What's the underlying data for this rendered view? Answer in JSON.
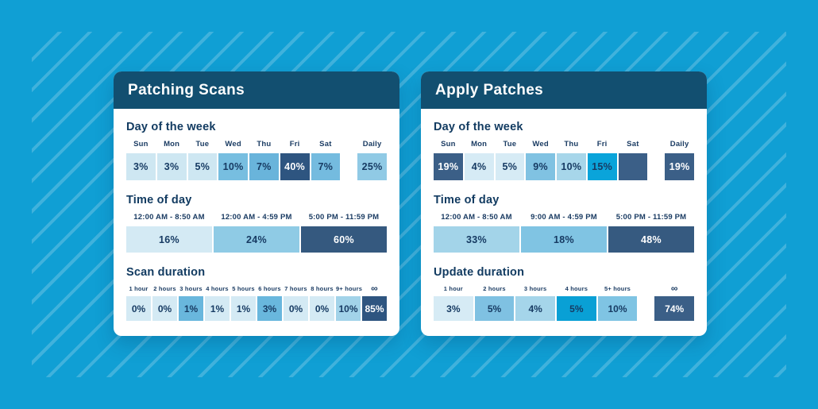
{
  "page": {
    "background_color": "#109FD4",
    "stripe_color": "rgba(255,255,255,0.20)",
    "header_color": "#124F70",
    "card_background": "#FFFFFF",
    "text_color": "#173B63"
  },
  "cards": [
    {
      "title": "Patching Scans",
      "sections": [
        {
          "title": "Day of the week",
          "type": "day",
          "cells": [
            {
              "label": "Sun",
              "value": "3%",
              "bg": "#CEE7F2",
              "text": "dark",
              "gap_before": false
            },
            {
              "label": "Mon",
              "value": "3%",
              "bg": "#CEE7F2",
              "text": "dark",
              "gap_before": false
            },
            {
              "label": "Tue",
              "value": "5%",
              "bg": "#CEE7F2",
              "text": "dark",
              "gap_before": false
            },
            {
              "label": "Wed",
              "value": "10%",
              "bg": "#77BEE0",
              "text": "dark",
              "gap_before": false
            },
            {
              "label": "Thu",
              "value": "7%",
              "bg": "#69B4DB",
              "text": "dark",
              "gap_before": false
            },
            {
              "label": "Fri",
              "value": "40%",
              "bg": "#2E5580",
              "text": "light",
              "gap_before": false
            },
            {
              "label": "Sat",
              "value": "7%",
              "bg": "#74BBDF",
              "text": "dark",
              "gap_before": false
            },
            {
              "label": "Daily",
              "value": "25%",
              "bg": "#90CAE5",
              "text": "dark",
              "gap_before": true
            }
          ]
        },
        {
          "title": "Time of day",
          "type": "time",
          "cells": [
            {
              "label": "12:00 AM - 8:50 AM",
              "value": "16%",
              "bg": "#D4EAF4",
              "text": "dark",
              "gap_before": false
            },
            {
              "label": "12:00 AM - 4:59 PM",
              "value": "24%",
              "bg": "#8FCBE5",
              "text": "dark",
              "gap_before": false
            },
            {
              "label": "5:00 PM - 11:59 PM",
              "value": "60%",
              "bg": "#35597F",
              "text": "light",
              "gap_before": false
            }
          ]
        },
        {
          "title": "Scan duration",
          "type": "duration",
          "cells": [
            {
              "label": "1 hour",
              "value": "0%",
              "bg": "#D4EAF4",
              "text": "dark",
              "gap_before": false
            },
            {
              "label": "2 hours",
              "value": "0%",
              "bg": "#D4EAF4",
              "text": "dark",
              "gap_before": false
            },
            {
              "label": "3 hours",
              "value": "1%",
              "bg": "#69B7DD",
              "text": "dark",
              "gap_before": false
            },
            {
              "label": "4 hours",
              "value": "1%",
              "bg": "#D4EAF4",
              "text": "dark",
              "gap_before": false
            },
            {
              "label": "5 hours",
              "value": "1%",
              "bg": "#D4EAF4",
              "text": "dark",
              "gap_before": false
            },
            {
              "label": "6 hours",
              "value": "3%",
              "bg": "#69B7DD",
              "text": "dark",
              "gap_before": false
            },
            {
              "label": "7 hours",
              "value": "0%",
              "bg": "#D4EAF4",
              "text": "dark",
              "gap_before": false
            },
            {
              "label": "8 hours",
              "value": "0%",
              "bg": "#D4EAF4",
              "text": "dark",
              "gap_before": false
            },
            {
              "label": "9+ hours",
              "value": "10%",
              "bg": "#A2D3E9",
              "text": "dark",
              "gap_before": false
            },
            {
              "label": "∞",
              "value": "85%",
              "bg": "#2E5580",
              "text": "light",
              "gap_before": false
            }
          ]
        }
      ]
    },
    {
      "title": "Apply Patches",
      "sections": [
        {
          "title": "Day of the week",
          "type": "day",
          "cells": [
            {
              "label": "Sun",
              "value": "19%",
              "bg": "#3B5F87",
              "text": "light",
              "gap_before": false
            },
            {
              "label": "Mon",
              "value": "4%",
              "bg": "#D6EBF5",
              "text": "dark",
              "gap_before": false
            },
            {
              "label": "Tue",
              "value": "5%",
              "bg": "#D6EBF5",
              "text": "dark",
              "gap_before": false
            },
            {
              "label": "Wed",
              "value": "9%",
              "bg": "#80C2E2",
              "text": "dark",
              "gap_before": false
            },
            {
              "label": "Thu",
              "value": "10%",
              "bg": "#A7D6EA",
              "text": "dark",
              "gap_before": false
            },
            {
              "label": "Fri",
              "value": "15%",
              "bg": "#0AA4DA",
              "text": "dark",
              "gap_before": false
            },
            {
              "label": "Sat",
              "value": "",
              "bg": "#3B5F87",
              "text": "light",
              "gap_before": false
            },
            {
              "label": "Daily",
              "value": "19%",
              "bg": "#3B5F87",
              "text": "light",
              "gap_before": true
            }
          ]
        },
        {
          "title": "Time of day",
          "type": "time",
          "cells": [
            {
              "label": "12:00 AM - 8:50 AM",
              "value": "33%",
              "bg": "#A3D4E9",
              "text": "dark",
              "gap_before": false
            },
            {
              "label": "9:00 AM - 4:59 PM",
              "value": "18%",
              "bg": "#80C4E3",
              "text": "dark",
              "gap_before": false
            },
            {
              "label": "5:00 PM - 11:59 PM",
              "value": "48%",
              "bg": "#365A80",
              "text": "light",
              "gap_before": false
            }
          ]
        },
        {
          "title": "Update duration",
          "type": "duration",
          "cells": [
            {
              "label": "1 hour",
              "value": "3%",
              "bg": "#D6EBF5",
              "text": "dark",
              "gap_before": false
            },
            {
              "label": "2 hours",
              "value": "5%",
              "bg": "#7FC1E2",
              "text": "dark",
              "gap_before": false
            },
            {
              "label": "3 hours",
              "value": "4%",
              "bg": "#A5D5EA",
              "text": "dark",
              "gap_before": false
            },
            {
              "label": "4 hours",
              "value": "5%",
              "bg": "#09A0D5",
              "text": "dark",
              "gap_before": false
            },
            {
              "label": "5+ hours",
              "value": "10%",
              "bg": "#7FC4E3",
              "text": "dark",
              "gap_before": false
            },
            {
              "label": "∞",
              "value": "74%",
              "bg": "#3B5F87",
              "text": "light",
              "gap_before": true
            }
          ]
        }
      ]
    }
  ],
  "chart_data": [
    {
      "type": "heatmap",
      "title": "Patching Scans",
      "groups": [
        {
          "name": "Day of the week",
          "categories": [
            "Sun",
            "Mon",
            "Tue",
            "Wed",
            "Thu",
            "Fri",
            "Sat",
            "Daily"
          ],
          "values_pct": [
            3,
            3,
            5,
            10,
            7,
            40,
            7,
            25
          ]
        },
        {
          "name": "Time of day",
          "categories": [
            "12:00 AM - 8:50 AM",
            "12:00 AM - 4:59 PM",
            "5:00 PM - 11:59 PM"
          ],
          "values_pct": [
            16,
            24,
            60
          ]
        },
        {
          "name": "Scan duration",
          "categories": [
            "1 hour",
            "2 hours",
            "3 hours",
            "4 hours",
            "5 hours",
            "6 hours",
            "7 hours",
            "8 hours",
            "9+ hours",
            "∞"
          ],
          "values_pct": [
            0,
            0,
            1,
            1,
            1,
            3,
            0,
            0,
            10,
            85
          ]
        }
      ]
    },
    {
      "type": "heatmap",
      "title": "Apply Patches",
      "groups": [
        {
          "name": "Day of the week",
          "categories": [
            "Sun",
            "Mon",
            "Tue",
            "Wed",
            "Thu",
            "Fri",
            "Sat",
            "Daily"
          ],
          "values_pct": [
            19,
            4,
            5,
            9,
            10,
            15,
            null,
            19
          ]
        },
        {
          "name": "Time of day",
          "categories": [
            "12:00 AM - 8:50 AM",
            "9:00 AM - 4:59 PM",
            "5:00 PM - 11:59 PM"
          ],
          "values_pct": [
            33,
            18,
            48
          ]
        },
        {
          "name": "Update duration",
          "categories": [
            "1 hour",
            "2 hours",
            "3 hours",
            "4 hours",
            "5+ hours",
            "∞"
          ],
          "values_pct": [
            3,
            5,
            4,
            5,
            10,
            74
          ]
        }
      ]
    }
  ]
}
